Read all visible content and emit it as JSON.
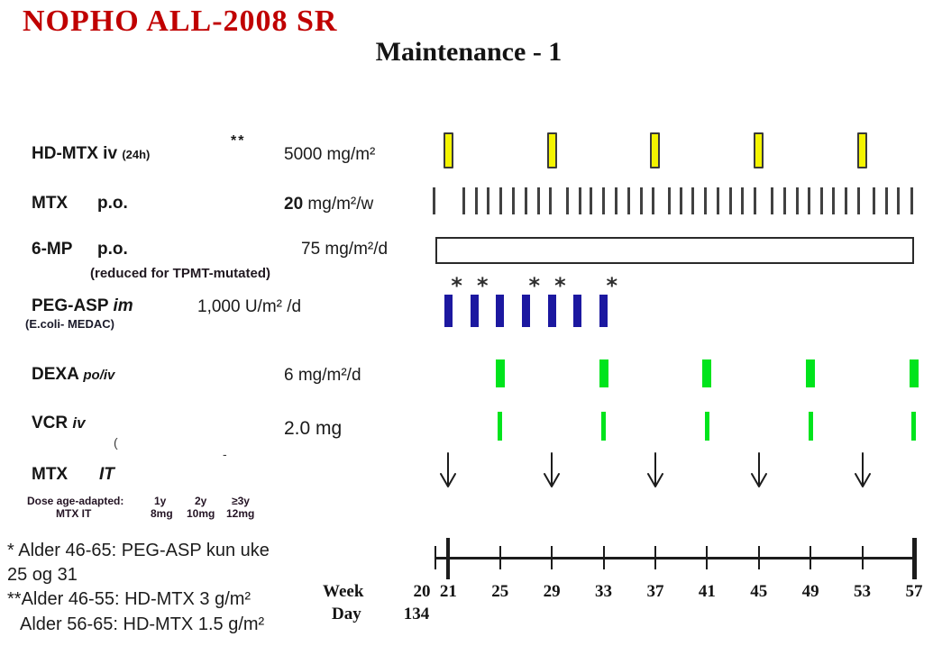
{
  "header": {
    "title": "NOPHO ALL-2008 SR",
    "subtitle": "Maintenance - 1"
  },
  "rows": {
    "hdmtx": {
      "name": "HD-MTX",
      "route": "iv",
      "duration": "(24h)",
      "stars": "**",
      "dose": "5000 mg/m²"
    },
    "mtx_po": {
      "name": "MTX",
      "route": "p.o.",
      "dose_bold": "20",
      "dose_rest": " mg/m²/w"
    },
    "six_mp": {
      "name": "6-MP",
      "route": "p.o.",
      "dose": "75 mg/m²/d",
      "note": "(reduced for TPMT-mutated)"
    },
    "peg_asp": {
      "name": "PEG-ASP",
      "route": "im",
      "dose": "1,000 U/m² /d",
      "sub": "(E.coli- MEDAC)"
    },
    "dexa": {
      "name": "DEXA",
      "route": "po/iv",
      "dose": "6 mg/m²/d"
    },
    "vcr": {
      "name": "VCR",
      "route": "iv",
      "dose": "2.0 mg"
    },
    "mtx_it": {
      "name": "MTX",
      "route": "IT"
    }
  },
  "age_table": {
    "header": "Dose age-adapted:",
    "col1": "1y",
    "col2": "2y",
    "col3": "≥3y",
    "row_label": "MTX IT",
    "val1": "8mg",
    "val2": "10mg",
    "val3": "12mg"
  },
  "footnotes": [
    "* Alder 46-65: PEG-ASP kun uke",
    "25 og 31",
    "**Alder 46-55: HD-MTX 3 g/m²",
    "Alder 56-65: HD-MTX 1.5 g/m²"
  ],
  "axis": {
    "week_label": "Week",
    "day_label": "Day",
    "day_value": "134",
    "week_ticks": [
      20,
      21,
      25,
      29,
      33,
      37,
      41,
      45,
      49,
      53,
      57
    ]
  },
  "artifacts": {
    "paren": "(",
    "dash": "-"
  },
  "colors": {
    "title_red": "#c00000",
    "hdmtx_yellow": "#f4f400",
    "peg_navy": "#1c18a0",
    "pulse_green": "#00e41c",
    "ink": "#1c1c1c"
  },
  "chart_data": {
    "type": "timeline",
    "x_axis": {
      "label": "Week",
      "range": [
        20,
        57
      ],
      "major_ticks": [
        20,
        21,
        25,
        29,
        33,
        37,
        41,
        45,
        49,
        53,
        57
      ],
      "day_label": "Day",
      "day_value_at_week_20": "134",
      "emphasized_ticks": [
        21,
        57
      ]
    },
    "series": [
      {
        "key": "hd_mtx",
        "name": "HD-MTX iv (24h)",
        "dose": "5000 mg/m²",
        "mark": "yellow-bar",
        "weeks": [
          21,
          29,
          37,
          45,
          53
        ]
      },
      {
        "key": "mtx_po",
        "name": "MTX p.o.",
        "dose": "20 mg/m²/w",
        "mark": "tick",
        "weeks": [
          19.9,
          22.2,
          23.15,
          24.1,
          25.05,
          26.0,
          27.0,
          27.95,
          28.9,
          30.2,
          31.15,
          32.05,
          33.0,
          33.95,
          34.95,
          35.9,
          36.85,
          38.1,
          39.0,
          39.9,
          40.85,
          41.85,
          42.8,
          43.75,
          44.7,
          46.0,
          47.0,
          47.95,
          48.9,
          49.85,
          50.8,
          51.75,
          52.7,
          53.9,
          54.9,
          55.8,
          56.8
        ]
      },
      {
        "key": "six_mp",
        "name": "6-MP p.o.",
        "dose": "75 mg/m²/d",
        "mark": "open-bar",
        "week_start": 20,
        "week_end": 57
      },
      {
        "key": "peg_asp",
        "name": "PEG-ASP im (E.coli- MEDAC)",
        "dose": "1,000 U/m²/d",
        "mark": "navy-bar",
        "weeks": [
          21,
          23,
          25,
          27,
          29,
          31,
          33
        ],
        "asterisk_weeks": [
          21,
          23,
          27,
          29,
          33
        ]
      },
      {
        "key": "dexa",
        "name": "DEXA po/iv",
        "dose": "6 mg/m²/d",
        "mark": "green-bar",
        "weeks": [
          25,
          33,
          41,
          49,
          57
        ]
      },
      {
        "key": "vcr",
        "name": "VCR iv",
        "dose": "2.0 mg",
        "mark": "green-bar-thin",
        "weeks": [
          25,
          33,
          41,
          49,
          57
        ]
      },
      {
        "key": "mtx_it",
        "name": "MTX IT",
        "mark": "down-arrow",
        "weeks": [
          21,
          29,
          37,
          45,
          53
        ]
      }
    ]
  }
}
